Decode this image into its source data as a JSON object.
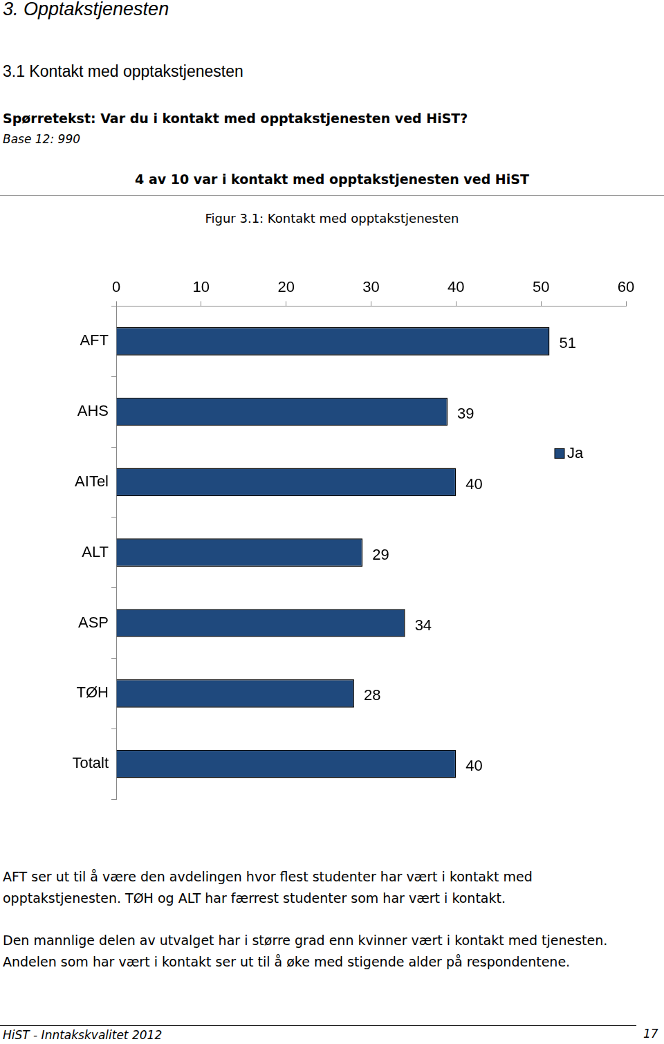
{
  "page": {
    "heading": "3. Opptakstjenesten",
    "section": "3.1 Kontakt med opptakstjenesten",
    "question": "Spørretekst: Var du i kontakt med opptakstjenesten ved HiST?",
    "base": "Base 12: 990",
    "headline": "4 av 10 var i kontakt med opptakstjenesten ved HiST",
    "paragraphs": [
      [
        "AFT ser ut til å være den avdelingen hvor flest studenter har vært i kontakt med",
        "opptakstjenesten. TØH og ALT har færrest studenter som har vært i kontakt."
      ],
      [
        "Den mannlige delen av utvalget har i større grad enn kvinner vært i kontakt med tjenesten.",
        "Andelen som har vært i kontakt ser ut til å øke med stigende alder på respondentene."
      ]
    ],
    "footer": "HiST - Inntakskvalitet 2012",
    "page_number": "17"
  },
  "chart_data": {
    "type": "bar",
    "title": "Figur 3.1: Kontakt med opptakstjenesten",
    "orientation": "horizontal",
    "categories": [
      "AFT",
      "AHS",
      "AITel",
      "ALT",
      "ASP",
      "TØH",
      "Totalt"
    ],
    "series": [
      {
        "name": "Ja",
        "color": "#1f497d",
        "values": [
          51,
          39,
          40,
          29,
          34,
          28,
          40
        ]
      }
    ],
    "xlim": [
      0,
      60
    ],
    "xticks": [
      0,
      10,
      20,
      30,
      40,
      50,
      60
    ],
    "grid": false,
    "legend": "right",
    "data_labels": true
  }
}
